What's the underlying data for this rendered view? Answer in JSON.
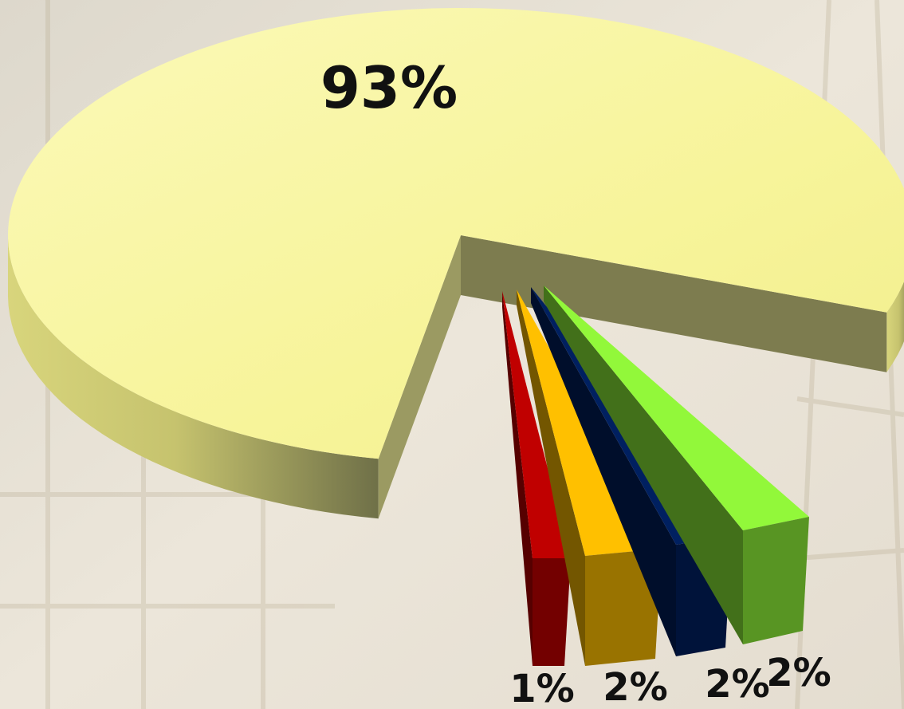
{
  "chart_data": {
    "type": "pie",
    "three_d": true,
    "exploded": true,
    "title": "",
    "legend": "none",
    "slices": [
      {
        "value": 93,
        "label": "93%",
        "color": "#f7f59b"
      },
      {
        "value": 1,
        "label": "1%",
        "color": "#c00000"
      },
      {
        "value": 2,
        "label": "2%",
        "color": "#ffc000"
      },
      {
        "value": 2,
        "label": "2%",
        "color": "#002060"
      },
      {
        "value": 2,
        "label": "2%",
        "color": "#92f83a"
      }
    ]
  }
}
